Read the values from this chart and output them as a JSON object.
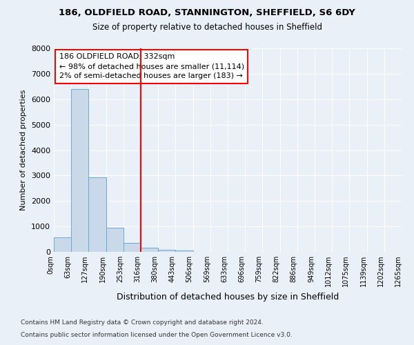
{
  "title1": "186, OLDFIELD ROAD, STANNINGTON, SHEFFIELD, S6 6DY",
  "title2": "Size of property relative to detached houses in Sheffield",
  "xlabel": "Distribution of detached houses by size in Sheffield",
  "ylabel": "Number of detached properties",
  "footnote1": "Contains HM Land Registry data © Crown copyright and database right 2024.",
  "footnote2": "Contains public sector information licensed under the Open Government Licence v3.0.",
  "annotation_line1": "186 OLDFIELD ROAD: 332sqm",
  "annotation_line2": "← 98% of detached houses are smaller (11,114)",
  "annotation_line3": "2% of semi-detached houses are larger (183) →",
  "bin_labels": [
    "0sqm",
    "63sqm",
    "127sqm",
    "190sqm",
    "253sqm",
    "316sqm",
    "380sqm",
    "443sqm",
    "506sqm",
    "569sqm",
    "633sqm",
    "696sqm",
    "759sqm",
    "822sqm",
    "886sqm",
    "949sqm",
    "1012sqm",
    "1075sqm",
    "1139sqm",
    "1202sqm",
    "1265sqm"
  ],
  "bar_values": [
    580,
    6400,
    2920,
    960,
    360,
    150,
    75,
    55,
    0,
    0,
    0,
    0,
    0,
    0,
    0,
    0,
    0,
    0,
    0,
    0
  ],
  "bar_color": "#c9d9ea",
  "bar_edge_color": "#6aaad4",
  "ylim": [
    0,
    8000
  ],
  "yticks": [
    0,
    1000,
    2000,
    3000,
    4000,
    5000,
    6000,
    7000,
    8000
  ],
  "bg_color": "#eaf0f7",
  "plot_bg_color": "#eaf0f7",
  "grid_color": "#ffffff",
  "red_line_bin": 5
}
